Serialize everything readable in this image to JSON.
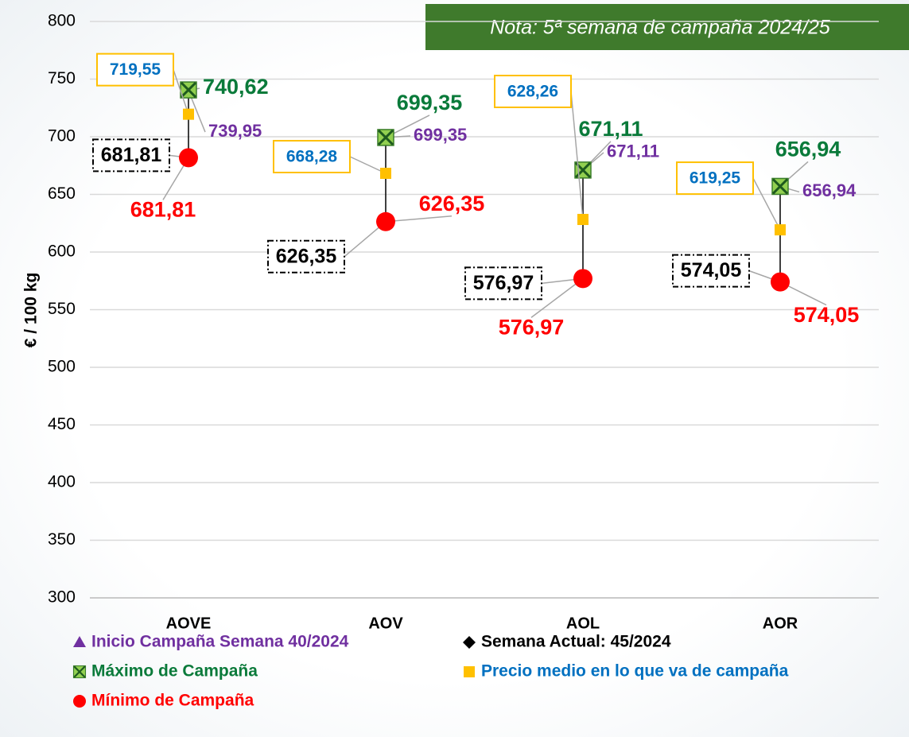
{
  "chart_data": {
    "type": "highlow",
    "y_label": "€ / 100 kg",
    "annotation": "Nota: 5ª semana de campaña 2024/25",
    "categories": [
      "AOVE",
      "AOV",
      "AOL",
      "AOR"
    ],
    "ylim": [
      300,
      800
    ],
    "yticks": [
      300,
      350,
      400,
      450,
      500,
      550,
      600,
      650,
      700,
      750,
      800
    ],
    "grid": true,
    "series": [
      {
        "name": "Inicio Campaña Semana 40/2024",
        "color": "#7030a0",
        "values": [
          739.95,
          699.35,
          671.11,
          656.94
        ],
        "value_labels": [
          "739,95",
          "699,35",
          "671,11",
          "656,94"
        ]
      },
      {
        "name": "Semana Actual: 45/2024",
        "color": "#000000",
        "values": [
          681.81,
          626.35,
          576.97,
          574.05
        ],
        "value_labels": [
          "681,81",
          "626,35",
          "576,97",
          "574,05"
        ]
      },
      {
        "name": "Máximo de Campaña",
        "color": "#0a7a3a",
        "values": [
          740.62,
          699.35,
          671.11,
          656.94
        ],
        "value_labels": [
          "740,62",
          "699,35",
          "671,11",
          "656,94"
        ]
      },
      {
        "name": "Precio medio en lo que va de campaña",
        "color": "#0070c0",
        "values": [
          719.55,
          668.28,
          628.26,
          619.25
        ],
        "value_labels": [
          "719,55",
          "668,28",
          "628,26",
          "619,25"
        ]
      },
      {
        "name": "Mínimo de Campaña",
        "color": "#ff0000",
        "values": [
          681.81,
          626.35,
          576.97,
          574.05
        ],
        "value_labels": [
          "681,81",
          "626,35",
          "576,97",
          "574,05"
        ]
      }
    ]
  }
}
